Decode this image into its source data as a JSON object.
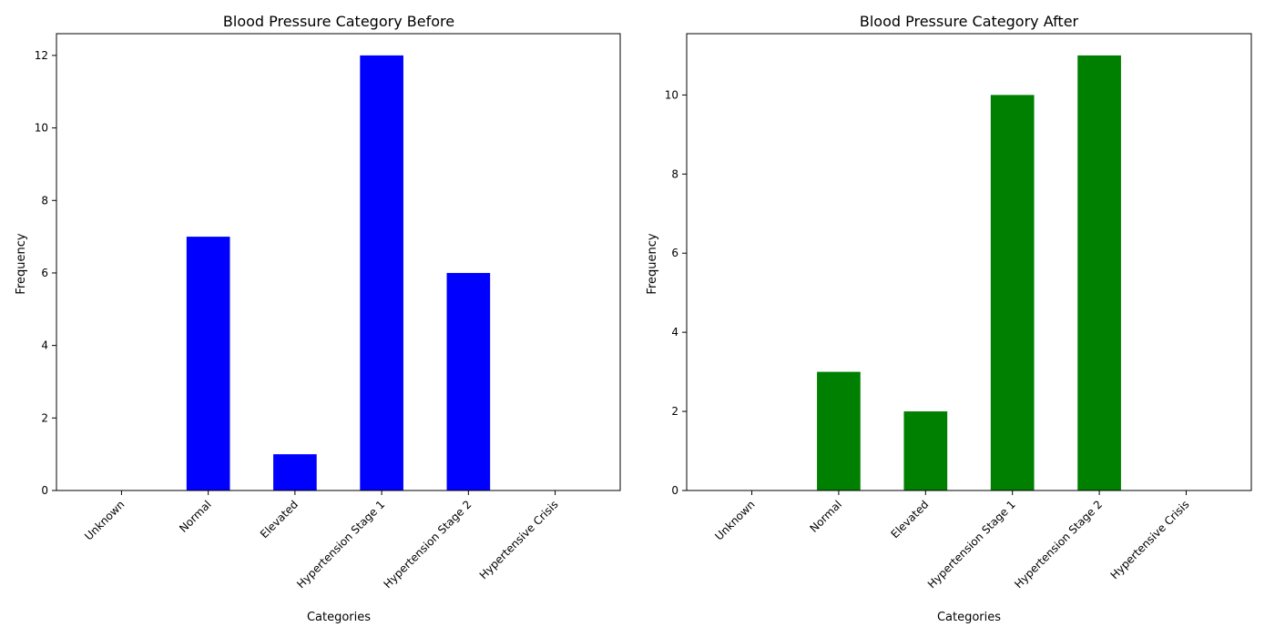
{
  "chart_data": [
    {
      "type": "bar",
      "title": "Blood Pressure Category Before",
      "xlabel": "Categories",
      "ylabel": "Frequency",
      "categories": [
        "Unknown",
        "Normal",
        "Elevated",
        "Hypertension Stage 1",
        "Hypertension Stage 2",
        "Hypertensive Crisis"
      ],
      "values": [
        0,
        7,
        1,
        12,
        6,
        0
      ],
      "color": "#0000ff",
      "ylim": [
        0,
        12.6
      ],
      "yticks": [
        0,
        2,
        4,
        6,
        8,
        10,
        12
      ],
      "grid": false,
      "legend": false
    },
    {
      "type": "bar",
      "title": "Blood Pressure Category After",
      "xlabel": "Categories",
      "ylabel": "Frequency",
      "categories": [
        "Unknown",
        "Normal",
        "Elevated",
        "Hypertension Stage 1",
        "Hypertension Stage 2",
        "Hypertensive Crisis"
      ],
      "values": [
        0,
        3,
        2,
        10,
        11,
        0
      ],
      "color": "#008000",
      "ylim": [
        0,
        11.55
      ],
      "yticks": [
        0,
        2,
        4,
        6,
        8,
        10
      ],
      "grid": false,
      "legend": false
    }
  ]
}
